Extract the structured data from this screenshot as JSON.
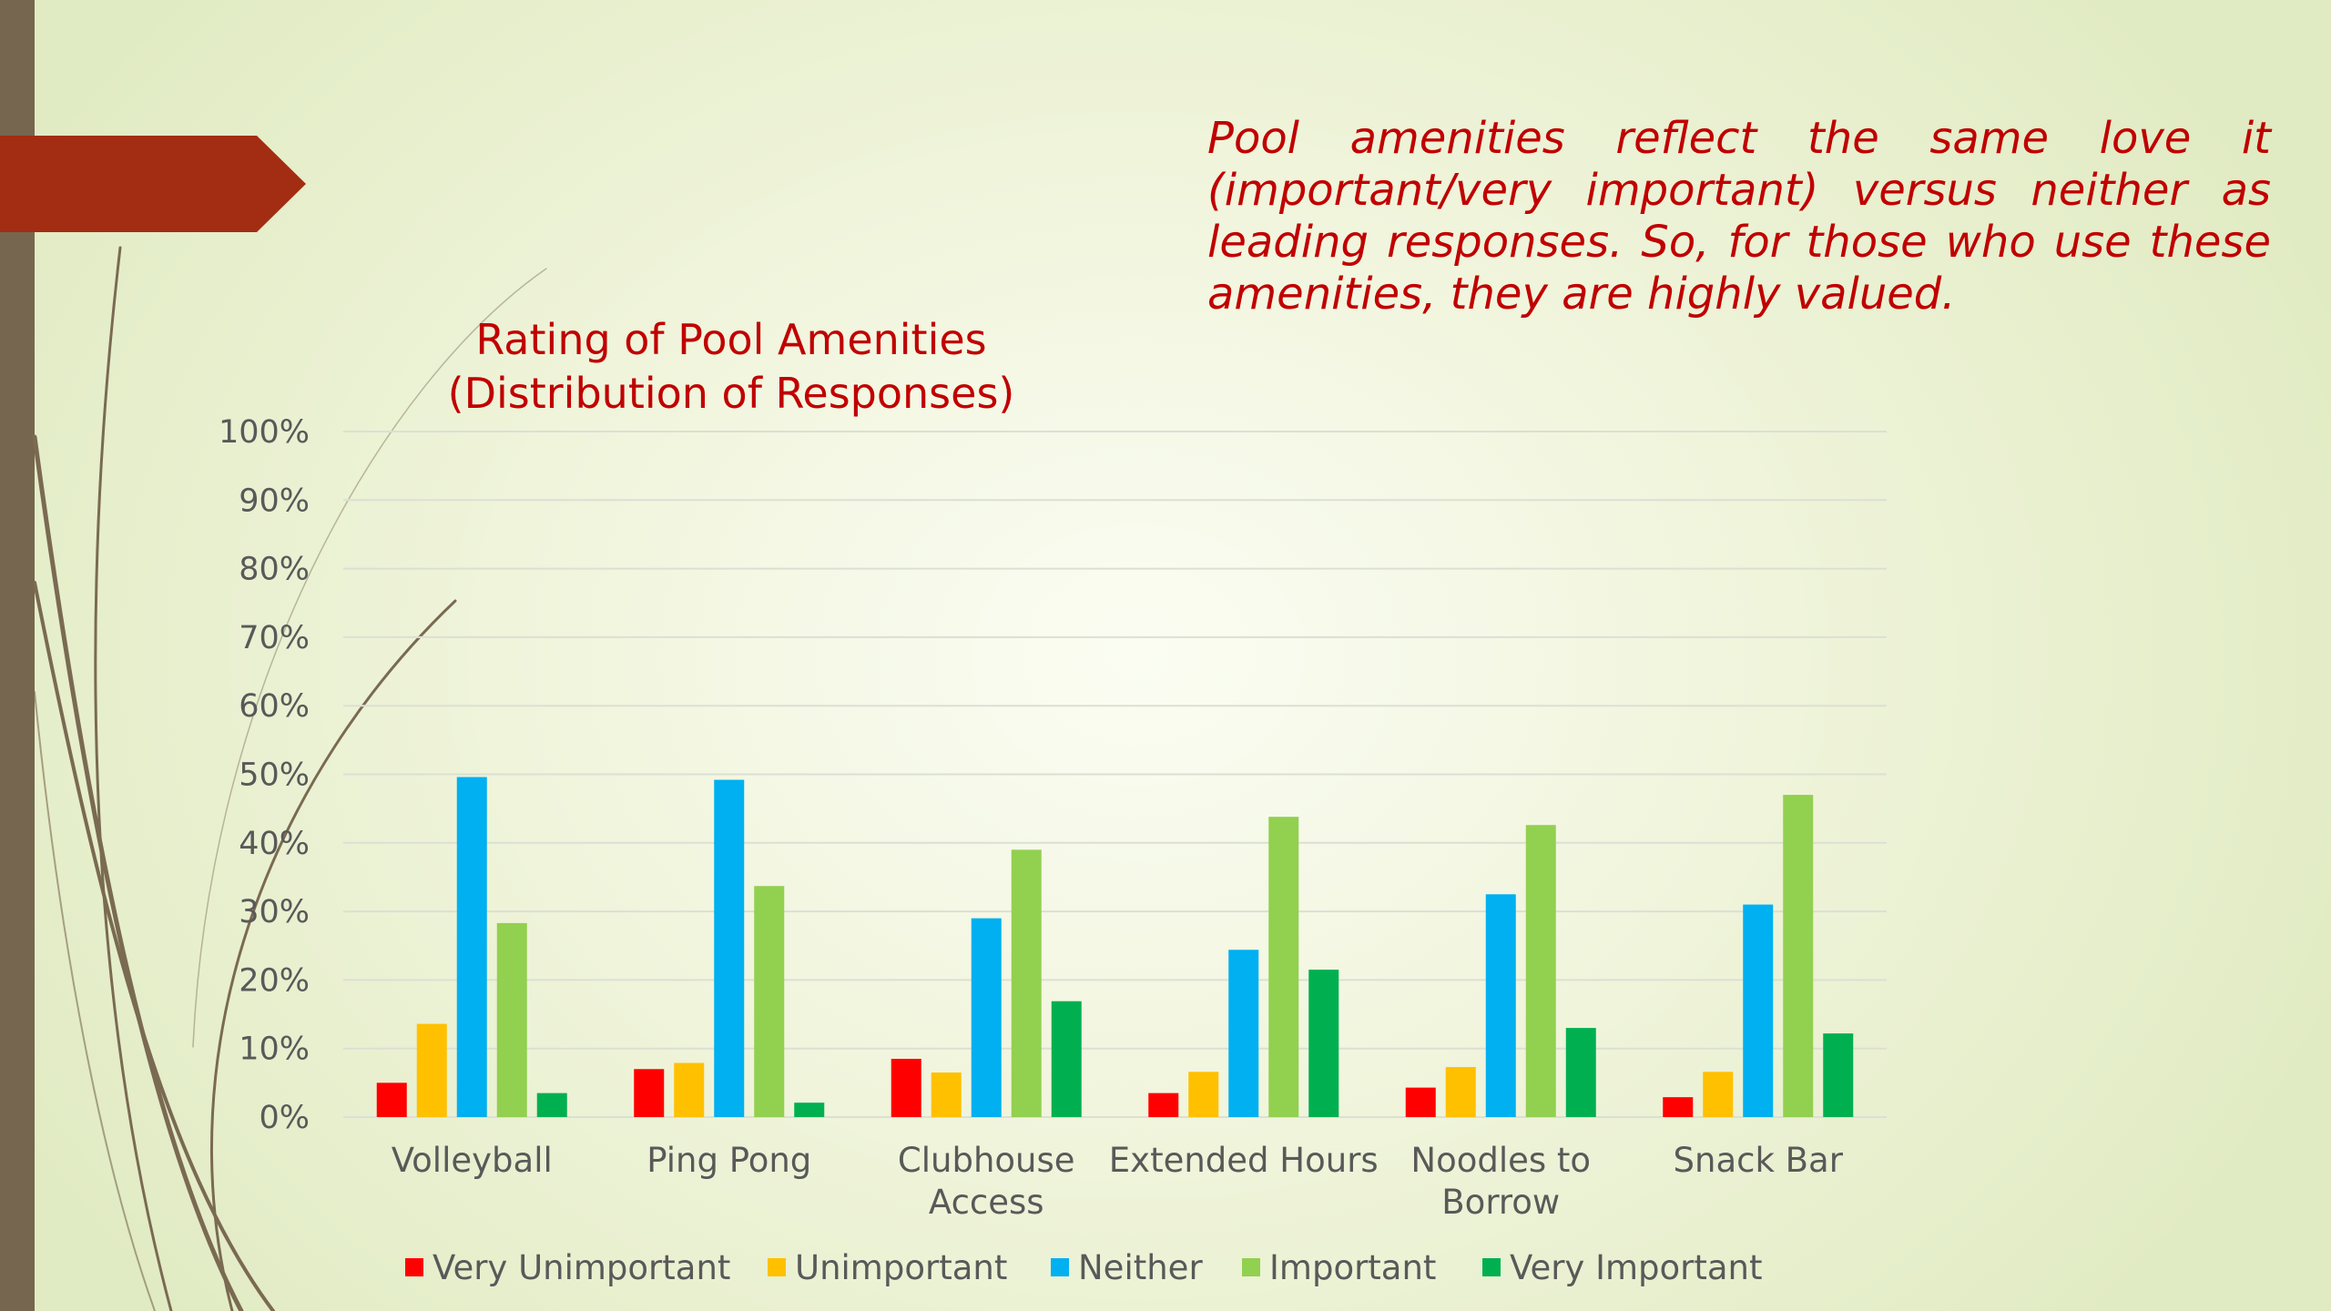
{
  "caption": "Pool amenities reflect the same love it (important/very important) versus neither as leading responses.  So, for those who use these amenities, they are highly valued.",
  "colors": {
    "stripe": "#76664f",
    "arrow": "#a32d12",
    "swirl": "#7a6a52",
    "caption": "#c00000"
  },
  "chart_data": {
    "type": "bar",
    "title": [
      "Rating of Pool Amenities",
      "(Distribution of Responses)"
    ],
    "xlabel": "",
    "ylabel": "",
    "ylim": [
      0,
      100
    ],
    "y_ticks": [
      "0%",
      "10%",
      "20%",
      "30%",
      "40%",
      "50%",
      "60%",
      "70%",
      "80%",
      "90%",
      "100%"
    ],
    "grid": true,
    "legend_position": "bottom",
    "categories": [
      [
        "Volleyball"
      ],
      [
        "Ping Pong"
      ],
      [
        "Clubhouse",
        "Access"
      ],
      [
        "Extended Hours"
      ],
      [
        "Noodles to",
        "Borrow"
      ],
      [
        "Snack Bar"
      ]
    ],
    "series": [
      {
        "name": "Very Unimportant",
        "color": "#ff0000",
        "values": [
          5,
          7,
          8.5,
          3.5,
          4.3,
          2.9
        ]
      },
      {
        "name": "Unimportant",
        "color": "#ffc000",
        "values": [
          13.6,
          7.9,
          6.5,
          6.6,
          7.3,
          6.6
        ]
      },
      {
        "name": "Neither",
        "color": "#00b0f0",
        "values": [
          49.6,
          49.2,
          29,
          24.4,
          32.5,
          31
        ]
      },
      {
        "name": "Important",
        "color": "#92d050",
        "values": [
          28.3,
          33.7,
          39,
          43.8,
          42.6,
          47
        ]
      },
      {
        "name": "Very Important",
        "color": "#00b050",
        "values": [
          3.5,
          2.1,
          16.9,
          21.5,
          13,
          12.2
        ]
      }
    ]
  }
}
